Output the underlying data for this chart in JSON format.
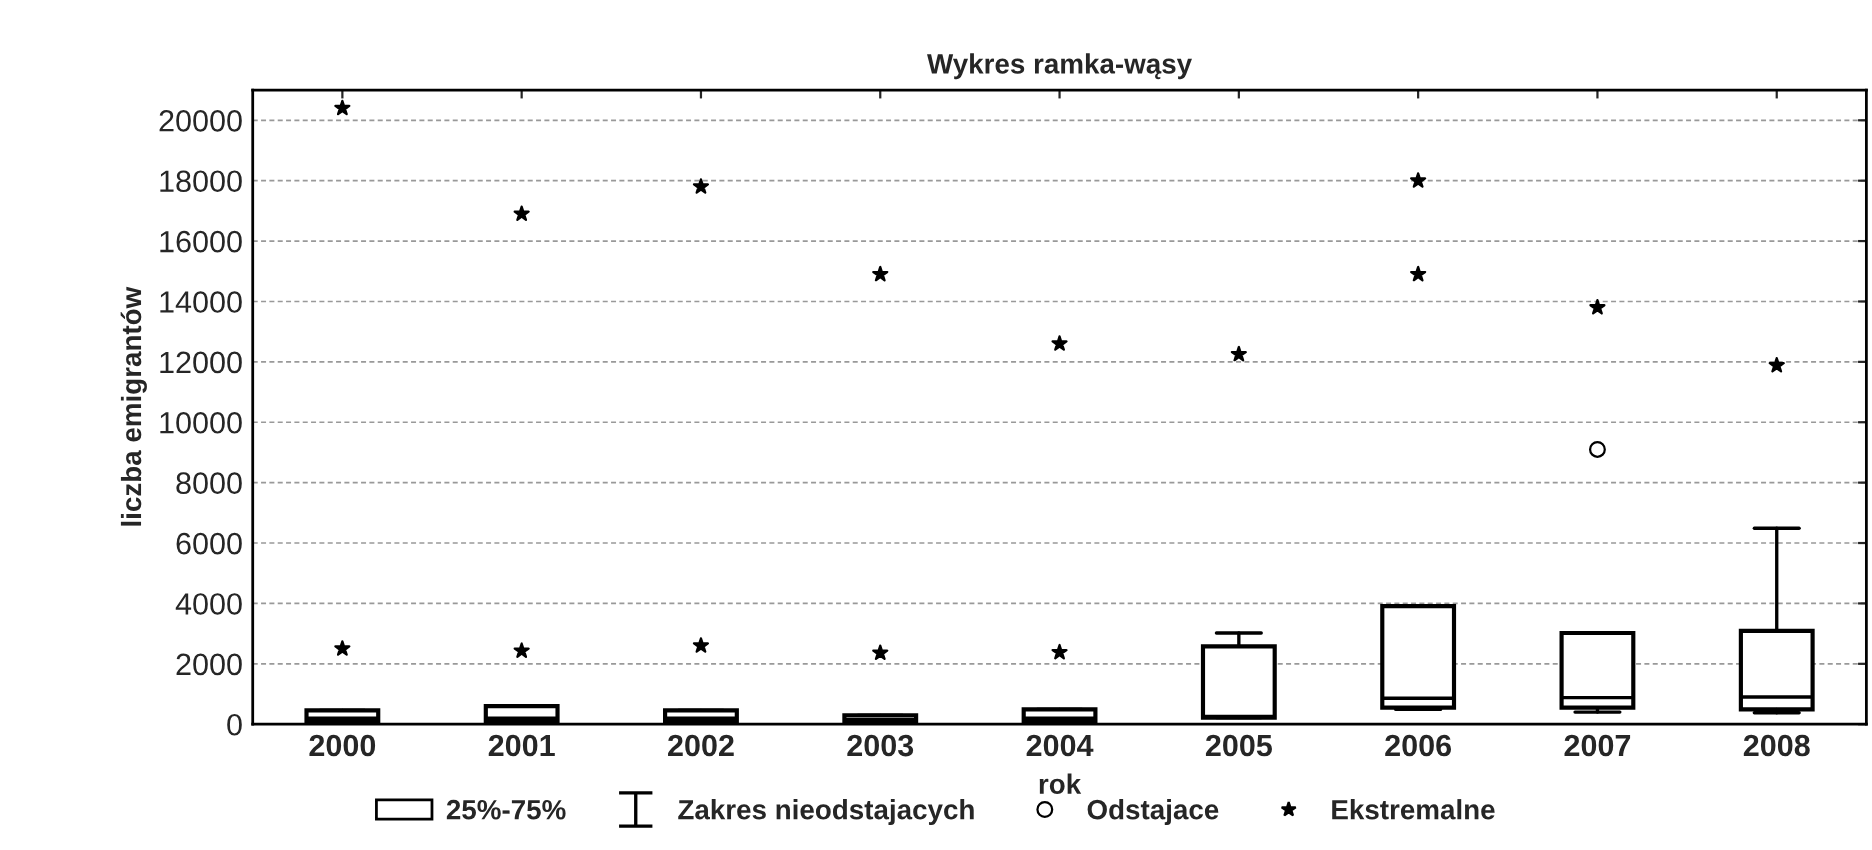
{
  "chart_data": {
    "type": "box",
    "title": "Wykres ramka-wąsy",
    "xlabel": "rok",
    "ylabel": "liczba emigrantów",
    "x": [
      2000,
      2001,
      2002,
      2003,
      2004,
      2005,
      2006,
      2007,
      2008
    ],
    "xlim": [
      1999.5,
      2008.5
    ],
    "xticks": [
      2000,
      2001,
      2002,
      2003,
      2004,
      2005,
      2006,
      2007,
      2008
    ],
    "ylim": [
      0,
      21000
    ],
    "yticks": [
      0,
      2000,
      4000,
      6000,
      8000,
      10000,
      12000,
      14000,
      16000,
      18000,
      20000
    ],
    "grid": "y",
    "legend": "bottom",
    "line_style": "dashed",
    "annotations": [
      "Zakres nieodstajacych"
    ],
    "series": [
      {
        "name": "25%-75%",
        "type": "box",
        "color": "#000000",
        "boxes": [
          {
            "low": 50,
            "q1": 110,
            "median": 200,
            "q3": 460,
            "high": 460
          },
          {
            "low": 50,
            "q1": 110,
            "median": 200,
            "q3": 600,
            "high": 600
          },
          {
            "low": 50,
            "q1": 110,
            "median": 200,
            "q3": 460,
            "high": 460
          },
          {
            "low": 30,
            "q1": 70,
            "median": 150,
            "q3": 290,
            "high": 290
          },
          {
            "low": 20,
            "q1": 110,
            "median": 200,
            "q3": 490,
            "high": 490
          },
          {
            "low": 220,
            "q1": 220,
            "median": 260,
            "q3": 2580,
            "high": 3020
          },
          {
            "low": 490,
            "q1": 550,
            "median": 860,
            "q3": 3910,
            "high": 3910
          },
          {
            "low": 400,
            "q1": 550,
            "median": 880,
            "q3": 3020,
            "high": 3020
          },
          {
            "low": 380,
            "q1": 490,
            "median": 900,
            "q3": 3090,
            "high": 6490
          }
        ]
      },
      {
        "name": "Odstajace",
        "type": "scatter",
        "marker": "circle",
        "color": "#000000",
        "x": [
          2007
        ],
        "values": [
          9100
        ]
      },
      {
        "name": "Ekstremalne",
        "type": "scatter",
        "marker": "star",
        "color": "#000000",
        "x": [
          2000,
          2000,
          2001,
          2001,
          2002,
          2002,
          2003,
          2003,
          2004,
          2004,
          2005,
          2006,
          2006,
          2007,
          2008
        ],
        "values": [
          20400,
          2500,
          16900,
          2430,
          17800,
          2600,
          14900,
          2360,
          12600,
          2380,
          12250,
          18000,
          14900,
          13800,
          11880
        ]
      }
    ]
  }
}
